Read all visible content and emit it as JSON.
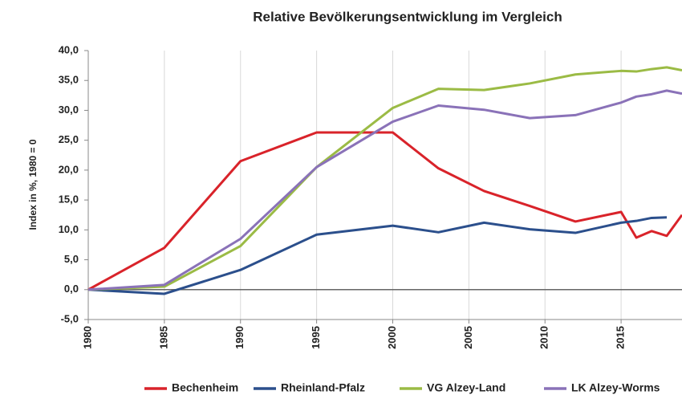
{
  "chart_data": {
    "type": "line",
    "title": "Relative Bevölkerungsentwicklung im Vergleich",
    "y_label": "Index in %, 1980 = 0",
    "x": [
      1980,
      1985,
      1990,
      1995,
      2000,
      2003,
      2006,
      2009,
      2012,
      2015,
      2016,
      2017,
      2018,
      2019
    ],
    "series": [
      {
        "name": "Bechenheim",
        "color": "#d9232a",
        "values": [
          0,
          7,
          21.5,
          26.3,
          26.3,
          20.3,
          16.5,
          14,
          11.4,
          13,
          8.7,
          9.8,
          9.0,
          12.5
        ]
      },
      {
        "name": "Rheinland-Pfalz",
        "color": "#2b4f8c",
        "values": [
          0,
          -0.7,
          3.3,
          9.2,
          10.7,
          9.6,
          11.2,
          10.1,
          9.5,
          11.2,
          11.5,
          12.0,
          12.1,
          null
        ]
      },
      {
        "name": "VG Alzey-Land",
        "color": "#9bbb45",
        "values": [
          0,
          0.5,
          7.3,
          20.5,
          30.4,
          33.6,
          33.4,
          34.5,
          36,
          36.6,
          36.5,
          36.9,
          37.2,
          36.7
        ]
      },
      {
        "name": "LK Alzey-Worms",
        "color": "#8a72b8",
        "values": [
          0,
          0.8,
          8.5,
          20.5,
          28.1,
          30.8,
          30.1,
          28.7,
          29.2,
          31.3,
          32.3,
          32.7,
          33.3,
          32.8
        ]
      }
    ],
    "xlim": [
      1980,
      2019
    ],
    "xticks": [
      1980,
      1985,
      1990,
      1995,
      2000,
      2005,
      2010,
      2015
    ],
    "ylim": [
      -5,
      40
    ],
    "yticks": [
      {
        "value": -5,
        "label": "-5,0"
      },
      {
        "value": 0,
        "label": "0,0"
      },
      {
        "value": 5,
        "label": "5,0"
      },
      {
        "value": 10,
        "label": "10,0"
      },
      {
        "value": 15,
        "label": "15,0"
      },
      {
        "value": 20,
        "label": "20,0"
      },
      {
        "value": 25,
        "label": "25,0"
      },
      {
        "value": 30,
        "label": "30,0"
      },
      {
        "value": 35,
        "label": "35,0"
      },
      {
        "value": 40,
        "label": "40,0"
      }
    ],
    "xgrid": true,
    "legend": "bottom"
  }
}
